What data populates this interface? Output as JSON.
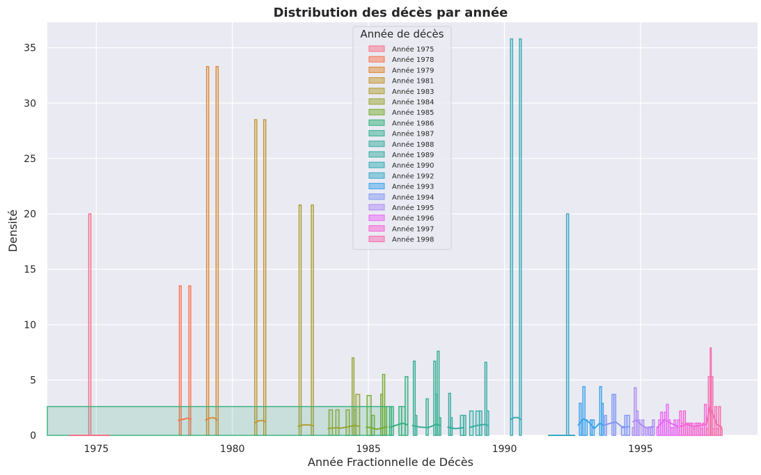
{
  "chart_data": {
    "type": "histogram",
    "title": "Distribution des décès par année",
    "xlabel": "Année Fractionnelle de Décès",
    "ylabel": "Densité",
    "xlim": [
      1973.2,
      1999.3
    ],
    "ylim": [
      0,
      37.3
    ],
    "xticks": [
      1975,
      1980,
      1985,
      1990,
      1995
    ],
    "yticks": [
      0,
      5,
      10,
      15,
      20,
      25,
      30,
      35
    ],
    "grid": true,
    "background": "#eaeaf2",
    "kde": true,
    "legend": {
      "title": "Année de décès",
      "placement": "top-center",
      "entries": [
        {
          "label": "Année 1975",
          "color": "#f77189"
        },
        {
          "label": "Année 1978",
          "color": "#f7754f"
        },
        {
          "label": "Année 1979",
          "color": "#dc8932"
        },
        {
          "label": "Année 1981",
          "color": "#c39532"
        },
        {
          "label": "Année 1983",
          "color": "#ae9d31"
        },
        {
          "label": "Année 1984",
          "color": "#97a431"
        },
        {
          "label": "Année 1985",
          "color": "#77ab31"
        },
        {
          "label": "Année 1986",
          "color": "#33b07a"
        },
        {
          "label": "Année 1987",
          "color": "#34ae91"
        },
        {
          "label": "Année 1988",
          "color": "#35ac9e"
        },
        {
          "label": "Année 1989",
          "color": "#36ada4"
        },
        {
          "label": "Année 1990",
          "color": "#37abb4"
        },
        {
          "label": "Année 1992",
          "color": "#38a9c5"
        },
        {
          "label": "Année 1993",
          "color": "#3ba3ec"
        },
        {
          "label": "Année 1994",
          "color": "#8197f4"
        },
        {
          "label": "Année 1995",
          "color": "#ad8bf4"
        },
        {
          "label": "Année 1996",
          "color": "#e866f4"
        },
        {
          "label": "Année 1997",
          "color": "#f564d4"
        },
        {
          "label": "Année 1998",
          "color": "#f66bad"
        }
      ]
    },
    "series": [
      {
        "group": "Année 1975",
        "color": "#f77189",
        "bars": [
          [
            1974.72,
            1974.8,
            20.0
          ]
        ],
        "kde": [
          [
            1974.0,
            0.0
          ],
          [
            1975.5,
            0.0
          ]
        ]
      },
      {
        "group": "Année 1978",
        "color": "#f7754f",
        "bars": [
          [
            1978.05,
            1978.12,
            13.5
          ],
          [
            1978.4,
            1978.47,
            13.5
          ]
        ],
        "kde": [
          [
            1978.0,
            1.35
          ],
          [
            1978.2,
            1.45
          ],
          [
            1978.35,
            1.55
          ],
          [
            1978.5,
            1.45
          ]
        ]
      },
      {
        "group": "Année 1979",
        "color": "#dc8932",
        "bars": [
          [
            1979.05,
            1979.13,
            33.3
          ],
          [
            1979.4,
            1979.48,
            33.3
          ]
        ],
        "kde": [
          [
            1979.0,
            1.35
          ],
          [
            1979.15,
            1.55
          ],
          [
            1979.3,
            1.6
          ],
          [
            1979.45,
            1.4
          ]
        ]
      },
      {
        "group": "Année 1981",
        "color": "#c39532",
        "bars": [
          [
            1980.82,
            1980.9,
            28.5
          ],
          [
            1981.15,
            1981.23,
            28.5
          ]
        ],
        "kde": [
          [
            1980.8,
            1.1
          ],
          [
            1980.95,
            1.3
          ],
          [
            1981.1,
            1.35
          ],
          [
            1981.25,
            1.2
          ]
        ]
      },
      {
        "group": "Année 1983",
        "color": "#ae9d31",
        "bars": [
          [
            1982.45,
            1982.53,
            20.8
          ],
          [
            1982.9,
            1982.98,
            20.8
          ]
        ],
        "kde": [
          [
            1982.4,
            0.8
          ],
          [
            1982.6,
            0.95
          ],
          [
            1982.8,
            0.95
          ],
          [
            1983.0,
            0.85
          ]
        ]
      },
      {
        "group": "Année 1984",
        "color": "#97a431",
        "bars": [
          [
            1983.55,
            1983.68,
            2.3
          ],
          [
            1983.8,
            1983.92,
            2.3
          ],
          [
            1984.18,
            1984.3,
            2.3
          ],
          [
            1984.4,
            1984.47,
            7.0
          ],
          [
            1984.47,
            1984.54,
            2.3
          ],
          [
            1984.54,
            1984.68,
            3.7
          ]
        ],
        "kde": [
          [
            1983.5,
            0.6
          ],
          [
            1983.8,
            0.7
          ],
          [
            1984.0,
            0.65
          ],
          [
            1984.3,
            0.8
          ],
          [
            1984.5,
            0.9
          ],
          [
            1984.7,
            0.8
          ]
        ]
      },
      {
        "group": "Année 1985",
        "color": "#77ab31",
        "bars": [
          [
            1984.95,
            1985.1,
            3.6
          ],
          [
            1985.12,
            1985.22,
            1.8
          ],
          [
            1985.45,
            1985.52,
            3.7
          ],
          [
            1985.52,
            1985.6,
            5.5
          ],
          [
            1985.6,
            1985.67,
            2.6
          ]
        ],
        "kde": [
          [
            1984.9,
            0.75
          ],
          [
            1985.1,
            0.7
          ],
          [
            1985.3,
            0.55
          ],
          [
            1985.5,
            0.65
          ],
          [
            1985.7,
            0.8
          ]
        ]
      },
      {
        "group": "Année 1986",
        "color": "#33b07a",
        "bars": [
          [
            1985.78,
            1985.85,
            2.6
          ],
          [
            1385.85,
            1985.92,
            2.6
          ],
          [
            1986.12,
            1986.22,
            2.6
          ],
          [
            1986.22,
            1986.35,
            2.6
          ],
          [
            1986.35,
            1986.45,
            5.3
          ]
        ],
        "kde": [
          [
            1985.75,
            0.7
          ],
          [
            1986.0,
            0.9
          ],
          [
            1986.25,
            1.1
          ],
          [
            1986.45,
            0.95
          ]
        ]
      },
      {
        "group": "Année 1987",
        "color": "#34ae91",
        "bars": [
          [
            1986.65,
            1986.72,
            6.7
          ],
          [
            1986.72,
            1986.78,
            1.8
          ],
          [
            1987.12,
            1987.2,
            3.3
          ],
          [
            1987.4,
            1987.47,
            6.7
          ],
          [
            1987.47,
            1987.53,
            3.7
          ],
          [
            1987.53,
            1987.6,
            7.6
          ],
          [
            1987.6,
            1987.66,
            1.6
          ]
        ],
        "kde": [
          [
            1986.6,
            0.9
          ],
          [
            1986.9,
            0.75
          ],
          [
            1987.2,
            0.7
          ],
          [
            1987.5,
            1.0
          ],
          [
            1987.65,
            0.9
          ]
        ]
      },
      {
        "group": "Année 1988",
        "color": "#35ac9e",
        "bars": [
          [
            1987.95,
            1988.02,
            3.8
          ],
          [
            1988.02,
            1988.08,
            1.6
          ],
          [
            1988.38,
            1988.5,
            1.8
          ],
          [
            1988.5,
            1988.58,
            1.8
          ]
        ],
        "kde": [
          [
            1987.9,
            0.75
          ],
          [
            1988.2,
            0.6
          ],
          [
            1988.5,
            0.7
          ]
        ]
      },
      {
        "group": "Année 1989",
        "color": "#36ada4",
        "bars": [
          [
            1988.72,
            1988.85,
            2.2
          ],
          [
            1988.95,
            1989.08,
            2.2
          ],
          [
            1989.08,
            1989.17,
            2.2
          ],
          [
            1989.28,
            1989.35,
            6.6
          ],
          [
            1989.35,
            1989.42,
            2.2
          ]
        ],
        "kde": [
          [
            1988.7,
            0.7
          ],
          [
            1989.0,
            0.9
          ],
          [
            1989.3,
            1.0
          ],
          [
            1989.42,
            0.85
          ]
        ]
      },
      {
        "group": "Année 1990",
        "color": "#37abb4",
        "bars": [
          [
            1990.22,
            1990.3,
            35.8
          ],
          [
            1990.55,
            1990.62,
            35.8
          ]
        ],
        "kde": [
          [
            1990.2,
            1.4
          ],
          [
            1990.35,
            1.6
          ],
          [
            1990.5,
            1.6
          ],
          [
            1990.62,
            1.4
          ]
        ]
      },
      {
        "group": "Année 1992",
        "color": "#38a9c5",
        "bars": [
          [
            1992.28,
            1992.36,
            20.0
          ]
        ],
        "kde": [
          [
            1991.6,
            0.0
          ],
          [
            1992.6,
            0.0
          ]
        ]
      },
      {
        "group": "Année 1993",
        "color": "#3ba3ec",
        "bars": [
          [
            1992.75,
            1992.82,
            2.9
          ],
          [
            1992.82,
            1992.88,
            1.4
          ],
          [
            1992.88,
            1992.96,
            4.4
          ],
          [
            1992.96,
            1993.04,
            1.4
          ],
          [
            1993.15,
            1993.22,
            1.4
          ],
          [
            1993.22,
            1993.3,
            1.4
          ],
          [
            1993.5,
            1993.57,
            4.4
          ],
          [
            1993.57,
            1993.63,
            2.9
          ]
        ],
        "kde": [
          [
            1992.7,
            0.9
          ],
          [
            1992.9,
            1.5
          ],
          [
            1993.1,
            1.2
          ],
          [
            1993.3,
            0.6
          ],
          [
            1993.5,
            1.1
          ],
          [
            1993.63,
            0.9
          ]
        ]
      },
      {
        "group": "Année 1994",
        "color": "#8197f4",
        "bars": [
          [
            1993.68,
            1993.75,
            1.8
          ],
          [
            1993.95,
            1994.02,
            3.7
          ],
          [
            1994.02,
            1994.09,
            3.7
          ],
          [
            1994.3,
            1994.42,
            0.8
          ],
          [
            1994.42,
            1994.5,
            1.8
          ],
          [
            1994.5,
            1994.6,
            1.8
          ]
        ],
        "kde": [
          [
            1993.65,
            0.9
          ],
          [
            1993.9,
            1.1
          ],
          [
            1994.1,
            1.2
          ],
          [
            1994.35,
            0.7
          ],
          [
            1994.6,
            0.8
          ]
        ]
      },
      {
        "group": "Année 1995",
        "color": "#ad8bf4",
        "bars": [
          [
            1994.7,
            1994.77,
            0.7
          ],
          [
            1994.77,
            1994.84,
            4.3
          ],
          [
            1994.84,
            1994.91,
            2.2
          ],
          [
            1994.91,
            1994.98,
            1.4
          ],
          [
            1995.05,
            1995.12,
            1.4
          ],
          [
            1995.18,
            1995.25,
            0.7
          ],
          [
            1995.3,
            1995.37,
            0.7
          ],
          [
            1995.37,
            1995.44,
            0.7
          ],
          [
            1995.44,
            1995.51,
            1.4
          ]
        ],
        "kde": [
          [
            1994.7,
            1.2
          ],
          [
            1994.85,
            1.4
          ],
          [
            1995.0,
            1.0
          ],
          [
            1995.2,
            0.7
          ],
          [
            1995.5,
            0.8
          ]
        ]
      },
      {
        "group": "Année 1996",
        "color": "#e866f4",
        "bars": [
          [
            1995.6,
            1995.67,
            0.7
          ],
          [
            1995.67,
            1995.74,
            1.4
          ],
          [
            1995.74,
            1995.81,
            2.1
          ],
          [
            1995.81,
            1995.88,
            1.4
          ],
          [
            1995.88,
            1995.95,
            2.1
          ],
          [
            1995.95,
            1996.02,
            2.8
          ],
          [
            1996.02,
            1996.09,
            1.4
          ],
          [
            1996.09,
            1996.16,
            0.7
          ],
          [
            1996.16,
            1996.23,
            0.7
          ],
          [
            1996.23,
            1996.3,
            1.4
          ],
          [
            1996.3,
            1996.37,
            0.7
          ],
          [
            1996.37,
            1996.44,
            1.4
          ]
        ],
        "kde": [
          [
            1995.6,
            0.7
          ],
          [
            1995.9,
            1.4
          ],
          [
            1996.1,
            1.1
          ],
          [
            1996.4,
            0.8
          ]
        ]
      },
      {
        "group": "Année 1997",
        "color": "#f564d4",
        "bars": [
          [
            1996.44,
            1996.51,
            2.2
          ],
          [
            1996.51,
            1996.58,
            1.1
          ],
          [
            1996.58,
            1996.65,
            2.2
          ],
          [
            1996.65,
            1996.72,
            1.1
          ],
          [
            1996.72,
            1996.79,
            1.1
          ],
          [
            1996.79,
            1996.86,
            1.1
          ],
          [
            1996.86,
            1996.93,
            1.1
          ],
          [
            1996.93,
            1997.0,
            0.6
          ],
          [
            1997.0,
            1997.07,
            1.1
          ],
          [
            1997.07,
            1997.14,
            1.1
          ],
          [
            1997.14,
            1997.21,
            1.1
          ],
          [
            1997.21,
            1997.28,
            0.6
          ],
          [
            1997.28,
            1997.35,
            1.1
          ],
          [
            1997.35,
            1997.42,
            2.8
          ]
        ],
        "kde": [
          [
            1996.45,
            0.8
          ],
          [
            1996.7,
            1.0
          ],
          [
            1996.95,
            0.8
          ],
          [
            1997.2,
            0.9
          ],
          [
            1997.42,
            1.0
          ]
        ]
      },
      {
        "group": "Année 1998",
        "color": "#f66bad",
        "bars": [
          [
            1997.42,
            1997.49,
            0.6
          ],
          [
            1997.49,
            1997.56,
            5.3
          ],
          [
            1997.56,
            1997.6,
            7.9
          ],
          [
            1997.6,
            1997.66,
            5.3
          ],
          [
            1997.66,
            1997.73,
            0.6
          ],
          [
            1997.73,
            1997.8,
            2.6
          ],
          [
            1997.8,
            1997.87,
            0.6
          ],
          [
            1997.87,
            1997.94,
            2.6
          ],
          [
            1997.94,
            1998.0,
            0.6
          ]
        ],
        "kde": [
          [
            1997.42,
            1.0
          ],
          [
            1997.55,
            2.6
          ],
          [
            1997.65,
            2.0
          ],
          [
            1997.8,
            1.0
          ],
          [
            1998.0,
            0.7
          ]
        ]
      }
    ]
  }
}
